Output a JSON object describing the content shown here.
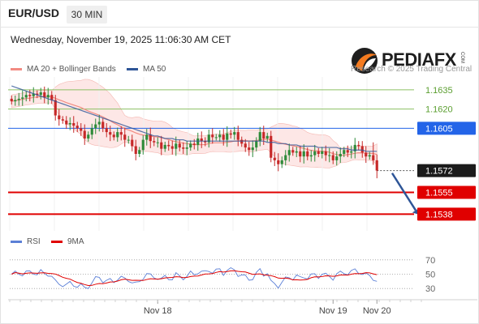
{
  "header": {
    "symbol": "EUR/USD",
    "timeframe": "30 MIN",
    "datetime": "Wednesday, November 19, 2025 11:06:30 AM CET"
  },
  "legend_main": [
    {
      "label": "MA 20 + Bollinger Bands",
      "color": "#f28b82"
    },
    {
      "label": "MA 50",
      "color": "#2e5597"
    }
  ],
  "legend_rsi": [
    {
      "label": "RSI",
      "color": "#5b7fd6"
    },
    {
      "label": "9MA",
      "color": "#e00000"
    }
  ],
  "brand": {
    "name": "PEDIAFX",
    "tm": "COM",
    "credit": "Research © 2025 Trading Central"
  },
  "chart_data": {
    "type": "line",
    "price_axis": {
      "ylim": [
        1.1525,
        1.1645
      ]
    },
    "levels": [
      {
        "value": 1.1635,
        "label": "1.1635",
        "kind": "target",
        "color": "#8cc063"
      },
      {
        "value": 1.162,
        "label": "1.1620",
        "kind": "target",
        "color": "#8cc063"
      },
      {
        "value": 1.1605,
        "label": "1.1605",
        "kind": "pivot",
        "color": "#2364e8"
      },
      {
        "value": 1.1572,
        "label": "1.1572",
        "kind": "last",
        "color": "#1b1b1b"
      },
      {
        "value": 1.1555,
        "label": "1.1555",
        "kind": "support",
        "color": "#e00000"
      },
      {
        "value": 1.1538,
        "label": "1.1538",
        "kind": "support",
        "color": "#e00000"
      }
    ],
    "x_ticks": [
      {
        "label": "Nov 18",
        "index": 40
      },
      {
        "label": "Nov 19",
        "index": 88
      },
      {
        "label": "Nov 20",
        "index": 100
      }
    ],
    "n_slots": 104,
    "close": [
      1.1626,
      1.1627,
      1.1628,
      1.1629,
      1.1631,
      1.163,
      1.1632,
      1.1631,
      1.1633,
      1.1629,
      1.1631,
      1.1627,
      1.1615,
      1.1612,
      1.1611,
      1.1608,
      1.1609,
      1.1607,
      1.1605,
      1.1603,
      1.1597,
      1.16,
      1.1605,
      1.1608,
      1.161,
      1.1605,
      1.1602,
      1.16,
      1.1598,
      1.1602,
      1.16,
      1.1596,
      1.1596,
      1.1591,
      1.1585,
      1.1588,
      1.1596,
      1.16,
      1.1595,
      1.1594,
      1.1594,
      1.1589,
      1.1592,
      1.1591,
      1.1589,
      1.1593,
      1.159,
      1.1589,
      1.159,
      1.1593,
      1.1592,
      1.1597,
      1.1595,
      1.1594,
      1.16,
      1.1598,
      1.1598,
      1.16,
      1.1596,
      1.1601,
      1.16,
      1.1602,
      1.1596,
      1.1593,
      1.159,
      1.1588,
      1.159,
      1.1595,
      1.1602,
      1.1597,
      1.1599,
      1.1582,
      1.158,
      1.1577,
      1.158,
      1.1584,
      1.1588,
      1.1586,
      1.1587,
      1.1583,
      1.1587,
      1.1583,
      1.1584,
      1.1587,
      1.1585,
      1.1587,
      1.1584,
      1.1584,
      1.158,
      1.1583,
      1.1585,
      1.1588,
      1.1586,
      1.1587,
      1.1592,
      1.1591,
      1.1586,
      1.1583,
      1.1584,
      1.158,
      1.1572
    ],
    "ma50": [
      1.1638,
      1.1637,
      1.1636,
      1.1635,
      1.1634,
      1.1633,
      1.1632,
      1.1631,
      1.163,
      1.1629,
      1.1628,
      1.1627,
      1.1626,
      1.1625,
      1.1624,
      1.1623,
      1.1622,
      1.1621,
      1.162,
      1.1619,
      1.1618,
      1.1617,
      1.1616,
      1.1615,
      1.1614,
      1.1613,
      1.1612,
      1.1611,
      1.161,
      1.1609,
      1.1608,
      1.1607,
      1.1606,
      1.1605,
      1.1604,
      1.1603,
      1.1602,
      1.1601,
      1.16,
      1.1599,
      1.1599,
      1.1598,
      1.1597,
      1.1597,
      1.1597,
      1.1596,
      1.1596,
      1.1596,
      1.1595,
      1.1595,
      1.1595,
      1.1595,
      1.1595,
      1.1595,
      1.1595,
      1.1595,
      1.1595,
      1.1595,
      1.1595,
      1.1595,
      1.1595,
      1.1595,
      1.1595,
      1.1595,
      1.1595,
      1.1595,
      1.1595,
      1.1595,
      1.1595,
      1.1595,
      1.1594,
      1.1594,
      1.1594,
      1.1593,
      1.1593,
      1.1593,
      1.1592,
      1.1592,
      1.1592,
      1.1591,
      1.1591,
      1.1591,
      1.1591,
      1.1591,
      1.159,
      1.159,
      1.159,
      1.159,
      1.159,
      1.159,
      1.1589,
      1.1589,
      1.1589,
      1.1588,
      1.1588,
      1.1588,
      1.1588,
      1.1587,
      1.1587,
      1.1587,
      1.1587
    ]
  },
  "rsi_data": {
    "levels": [
      {
        "value": 70,
        "label": "70"
      },
      {
        "value": 50,
        "label": "50"
      },
      {
        "value": 30,
        "label": "30"
      }
    ],
    "ylim": [
      20,
      80
    ]
  }
}
